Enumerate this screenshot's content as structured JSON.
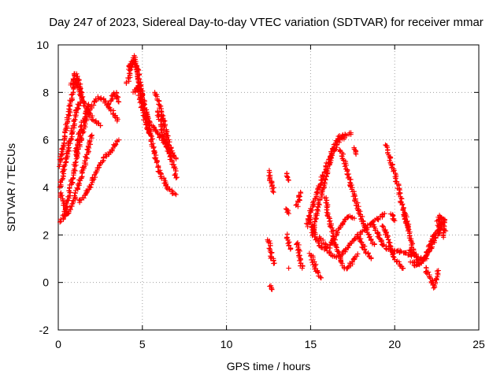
{
  "chart_data": {
    "type": "scatter",
    "title": "Day 247 of 2023, Sidereal Day-to-day VTEC variation (SDTVAR) for receiver mmar",
    "xlabel": "GPS time / hours",
    "ylabel": "SDTVAR / TECUs",
    "xlim": [
      0,
      25
    ],
    "ylim": [
      -2,
      10
    ],
    "xticks": [
      0,
      5,
      10,
      15,
      20,
      25
    ],
    "yticks": [
      -2,
      0,
      2,
      4,
      6,
      8,
      10
    ],
    "grid": true,
    "marker": "plus",
    "color": "#ff0000",
    "traces": [
      [
        [
          0.0,
          4.8
        ],
        [
          0.2,
          5.4
        ],
        [
          0.4,
          6.2
        ],
        [
          0.6,
          7.0
        ],
        [
          0.8,
          7.8
        ],
        [
          1.0,
          8.5
        ],
        [
          1.3,
          8.0
        ],
        [
          1.6,
          7.4
        ],
        [
          1.9,
          7.0
        ],
        [
          2.2,
          6.8
        ],
        [
          2.5,
          6.6
        ]
      ],
      [
        [
          0.1,
          4.0
        ],
        [
          0.3,
          4.6
        ],
        [
          0.5,
          5.3
        ],
        [
          0.7,
          6.0
        ],
        [
          0.9,
          6.6
        ],
        [
          1.1,
          7.2
        ],
        [
          1.3,
          7.6
        ]
      ],
      [
        [
          0.0,
          2.4
        ],
        [
          0.3,
          2.7
        ],
        [
          0.6,
          3.6
        ],
        [
          0.9,
          4.6
        ],
        [
          1.2,
          5.6
        ],
        [
          1.5,
          6.5
        ],
        [
          1.8,
          7.2
        ],
        [
          2.1,
          7.6
        ],
        [
          2.4,
          7.8
        ],
        [
          2.7,
          7.7
        ],
        [
          3.0,
          7.4
        ],
        [
          3.3,
          7.1
        ],
        [
          3.5,
          6.8
        ]
      ],
      [
        [
          0.1,
          3.8
        ],
        [
          0.3,
          3.3
        ],
        [
          0.5,
          2.8
        ],
        [
          0.7,
          3.0
        ],
        [
          1.0,
          3.6
        ],
        [
          1.3,
          4.3
        ],
        [
          1.6,
          5.0
        ],
        [
          1.8,
          5.7
        ],
        [
          2.0,
          6.2
        ]
      ],
      [
        [
          1.0,
          5.4
        ],
        [
          1.2,
          6.0
        ],
        [
          1.4,
          6.6
        ],
        [
          1.6,
          7.1
        ],
        [
          1.8,
          7.5
        ]
      ],
      [
        [
          1.2,
          3.4
        ],
        [
          1.5,
          3.6
        ],
        [
          1.8,
          3.9
        ],
        [
          2.0,
          4.2
        ],
        [
          2.2,
          4.6
        ],
        [
          2.5,
          5.0
        ],
        [
          2.8,
          5.3
        ],
        [
          3.1,
          5.5
        ],
        [
          3.4,
          5.8
        ],
        [
          3.6,
          6.0
        ]
      ],
      [
        [
          0.8,
          8.3
        ],
        [
          1.0,
          8.8
        ],
        [
          1.2,
          8.5
        ],
        [
          1.4,
          7.8
        ]
      ],
      [
        [
          3.0,
          7.5
        ],
        [
          3.2,
          7.8
        ],
        [
          3.4,
          8.0
        ],
        [
          3.6,
          7.6
        ]
      ],
      [
        [
          4.1,
          8.4
        ],
        [
          4.3,
          8.9
        ],
        [
          4.5,
          9.5
        ],
        [
          4.7,
          9.0
        ],
        [
          4.9,
          8.2
        ],
        [
          5.1,
          7.4
        ],
        [
          5.3,
          6.9
        ],
        [
          5.5,
          6.6
        ],
        [
          5.7,
          6.5
        ],
        [
          5.9,
          6.3
        ],
        [
          6.1,
          6.1
        ],
        [
          6.3,
          5.9
        ],
        [
          6.5,
          5.6
        ],
        [
          6.7,
          5.2
        ],
        [
          6.9,
          4.8
        ],
        [
          7.0,
          4.4
        ]
      ],
      [
        [
          4.2,
          9.0
        ],
        [
          4.4,
          9.3
        ],
        [
          4.6,
          9.1
        ],
        [
          4.8,
          8.5
        ],
        [
          5.0,
          7.8
        ],
        [
          5.2,
          7.2
        ],
        [
          5.4,
          6.5
        ],
        [
          5.6,
          5.8
        ],
        [
          5.8,
          5.2
        ],
        [
          6.0,
          4.7
        ],
        [
          6.2,
          4.4
        ],
        [
          6.4,
          4.1
        ],
        [
          6.6,
          3.9
        ],
        [
          6.8,
          3.8
        ],
        [
          7.0,
          3.7
        ]
      ],
      [
        [
          4.5,
          8.0
        ],
        [
          4.7,
          8.3
        ],
        [
          4.9,
          7.6
        ],
        [
          5.1,
          7.0
        ],
        [
          5.3,
          6.5
        ],
        [
          5.5,
          6.2
        ]
      ],
      [
        [
          5.8,
          8.0
        ],
        [
          6.0,
          7.5
        ],
        [
          6.2,
          7.0
        ],
        [
          6.4,
          6.4
        ],
        [
          6.6,
          5.8
        ],
        [
          6.8,
          5.4
        ],
        [
          7.0,
          5.2
        ]
      ],
      [
        [
          5.9,
          7.2
        ],
        [
          6.1,
          6.7
        ],
        [
          6.3,
          6.1
        ],
        [
          6.5,
          5.6
        ],
        [
          6.7,
          5.4
        ],
        [
          6.9,
          5.3
        ]
      ],
      [
        [
          12.5,
          4.7
        ],
        [
          12.6,
          4.4
        ],
        [
          12.7,
          4.1
        ],
        [
          12.8,
          3.8
        ]
      ],
      [
        [
          12.5,
          1.8
        ],
        [
          12.6,
          1.4
        ],
        [
          12.7,
          1.0
        ],
        [
          12.8,
          0.8
        ]
      ],
      [
        [
          12.6,
          -0.1
        ],
        [
          12.7,
          -0.3
        ]
      ],
      [
        [
          13.6,
          4.6
        ],
        [
          13.7,
          4.3
        ]
      ],
      [
        [
          13.6,
          3.1
        ],
        [
          13.7,
          2.9
        ]
      ],
      [
        [
          13.6,
          2.0
        ],
        [
          13.7,
          1.7
        ],
        [
          13.8,
          1.4
        ]
      ],
      [
        [
          13.7,
          0.6
        ]
      ],
      [
        [
          14.2,
          1.7
        ],
        [
          14.3,
          1.3
        ],
        [
          14.4,
          0.9
        ],
        [
          14.5,
          0.6
        ]
      ],
      [
        [
          14.2,
          3.2
        ],
        [
          14.4,
          3.8
        ]
      ],
      [
        [
          14.8,
          2.4
        ],
        [
          15.0,
          3.0
        ],
        [
          15.3,
          3.6
        ],
        [
          15.6,
          4.2
        ],
        [
          15.9,
          4.8
        ],
        [
          16.2,
          5.4
        ],
        [
          16.5,
          5.9
        ],
        [
          16.8,
          6.2
        ],
        [
          17.1,
          6.2
        ],
        [
          17.4,
          6.3
        ]
      ],
      [
        [
          15.1,
          2.0
        ],
        [
          15.3,
          2.6
        ],
        [
          15.5,
          3.4
        ],
        [
          15.8,
          4.2
        ],
        [
          16.1,
          5.0
        ],
        [
          16.4,
          5.6
        ],
        [
          16.7,
          6.0
        ],
        [
          17.0,
          6.1
        ]
      ],
      [
        [
          14.9,
          2.8
        ],
        [
          15.1,
          2.3
        ],
        [
          15.3,
          1.9
        ],
        [
          15.5,
          1.6
        ],
        [
          15.8,
          1.4
        ],
        [
          16.1,
          1.5
        ],
        [
          16.4,
          1.9
        ],
        [
          16.7,
          2.3
        ],
        [
          17.0,
          2.6
        ],
        [
          17.3,
          2.8
        ],
        [
          17.6,
          2.7
        ]
      ],
      [
        [
          15.0,
          1.2
        ],
        [
          15.2,
          0.8
        ],
        [
          15.4,
          0.4
        ],
        [
          15.6,
          0.2
        ]
      ],
      [
        [
          15.5,
          1.9
        ],
        [
          15.8,
          1.6
        ],
        [
          16.1,
          1.3
        ],
        [
          16.4,
          1.1
        ],
        [
          16.7,
          1.1
        ],
        [
          17.0,
          1.3
        ],
        [
          17.3,
          1.6
        ],
        [
          17.6,
          1.8
        ],
        [
          17.9,
          2.0
        ],
        [
          18.2,
          2.2
        ],
        [
          18.5,
          2.4
        ],
        [
          18.8,
          2.6
        ],
        [
          19.1,
          2.7
        ],
        [
          19.4,
          2.9
        ]
      ],
      [
        [
          15.9,
          3.6
        ],
        [
          16.0,
          3.0
        ],
        [
          16.2,
          2.4
        ],
        [
          16.4,
          1.8
        ],
        [
          16.6,
          1.3
        ],
        [
          16.8,
          0.9
        ],
        [
          17.0,
          0.6
        ],
        [
          17.2,
          0.6
        ],
        [
          17.5,
          0.9
        ],
        [
          17.8,
          1.2
        ]
      ],
      [
        [
          16.8,
          5.6
        ],
        [
          17.0,
          5.1
        ],
        [
          17.2,
          4.6
        ],
        [
          17.4,
          4.1
        ],
        [
          17.6,
          3.6
        ],
        [
          17.8,
          3.2
        ],
        [
          18.0,
          2.8
        ],
        [
          18.2,
          2.4
        ],
        [
          18.4,
          2.1
        ],
        [
          18.6,
          1.8
        ],
        [
          18.8,
          1.6
        ]
      ],
      [
        [
          17.6,
          5.7
        ],
        [
          17.7,
          5.4
        ]
      ],
      [
        [
          17.8,
          2.0
        ],
        [
          18.0,
          1.7
        ],
        [
          18.2,
          1.4
        ],
        [
          18.4,
          1.2
        ],
        [
          18.6,
          1.0
        ]
      ],
      [
        [
          18.7,
          2.5
        ],
        [
          18.9,
          2.2
        ],
        [
          19.1,
          1.9
        ],
        [
          19.3,
          1.6
        ],
        [
          19.6,
          1.4
        ],
        [
          19.9,
          1.3
        ],
        [
          20.2,
          1.3
        ],
        [
          20.5,
          1.3
        ],
        [
          20.8,
          1.2
        ],
        [
          21.0,
          1.1
        ]
      ],
      [
        [
          19.3,
          2.4
        ],
        [
          19.5,
          2.0
        ],
        [
          19.7,
          1.6
        ],
        [
          19.9,
          1.2
        ],
        [
          20.1,
          0.9
        ],
        [
          20.3,
          0.7
        ],
        [
          20.5,
          0.6
        ]
      ],
      [
        [
          19.5,
          5.8
        ],
        [
          19.7,
          5.3
        ],
        [
          19.9,
          4.8
        ],
        [
          20.1,
          4.3
        ],
        [
          20.3,
          3.7
        ],
        [
          20.5,
          3.1
        ],
        [
          20.7,
          2.5
        ],
        [
          20.9,
          1.9
        ],
        [
          21.1,
          1.4
        ],
        [
          21.3,
          1.0
        ],
        [
          21.5,
          0.8
        ]
      ],
      [
        [
          19.8,
          2.9
        ],
        [
          20.0,
          2.6
        ]
      ],
      [
        [
          20.6,
          2.9
        ],
        [
          20.7,
          2.6
        ],
        [
          20.8,
          2.3
        ]
      ],
      [
        [
          20.9,
          1.4
        ],
        [
          21.2,
          1.2
        ],
        [
          21.5,
          1.0
        ],
        [
          21.8,
          1.0
        ],
        [
          22.1,
          1.4
        ],
        [
          22.4,
          1.8
        ],
        [
          22.7,
          2.2
        ],
        [
          22.9,
          2.6
        ]
      ],
      [
        [
          21.0,
          0.9
        ],
        [
          21.3,
          0.7
        ],
        [
          21.6,
          0.8
        ],
        [
          21.9,
          1.2
        ],
        [
          22.2,
          1.7
        ],
        [
          22.5,
          2.2
        ],
        [
          22.8,
          2.7
        ]
      ],
      [
        [
          21.8,
          0.6
        ],
        [
          22.0,
          0.3
        ],
        [
          22.2,
          0.1
        ],
        [
          22.3,
          -0.2
        ],
        [
          22.5,
          0.2
        ],
        [
          22.6,
          0.5
        ]
      ],
      [
        [
          22.5,
          2.6
        ],
        [
          22.7,
          2.8
        ],
        [
          22.9,
          2.7
        ],
        [
          23.0,
          2.3
        ],
        [
          22.9,
          1.9
        ]
      ]
    ]
  }
}
